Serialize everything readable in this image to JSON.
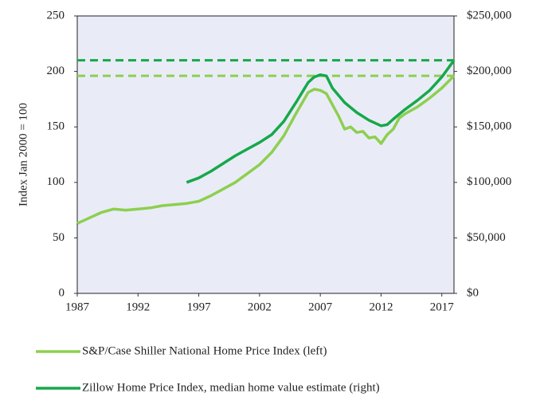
{
  "chart_data": {
    "type": "line",
    "xlim": [
      1987,
      2018
    ],
    "xticks": [
      1987,
      1992,
      1997,
      2002,
      2007,
      2012,
      2017
    ],
    "ylim": [
      0,
      250
    ],
    "yticks": [
      0,
      50,
      100,
      150,
      200,
      250
    ],
    "y2lim": [
      0,
      250000
    ],
    "y2ticks": [
      {
        "value": 0,
        "label": "$0"
      },
      {
        "value": 50000,
        "label": "$50,000"
      },
      {
        "value": 100000,
        "label": "$100,000"
      },
      {
        "value": 150000,
        "label": "$150,000"
      },
      {
        "value": 200000,
        "label": "$200,000"
      },
      {
        "value": 250000,
        "label": "$250,000"
      }
    ],
    "ylabel": "Index Jan 2000 = 100",
    "series": [
      {
        "name": "S&P/Case Shiller National Home Price Index (left)",
        "color": "#8dcf4f",
        "axis": "y",
        "x": [
          1987,
          1988,
          1989,
          1990,
          1991,
          1992,
          1993,
          1994,
          1995,
          1996,
          1997,
          1998,
          1999,
          2000,
          2001,
          2002,
          2003,
          2004,
          2005,
          2006,
          2006.5,
          2007,
          2007.5,
          2008,
          2008.5,
          2009,
          2009.5,
          2010,
          2010.5,
          2011,
          2011.5,
          2012,
          2012.5,
          2013,
          2013.5,
          2014,
          2015,
          2016,
          2017,
          2018
        ],
        "values": [
          63,
          68,
          73,
          76,
          75,
          76,
          77,
          79,
          80,
          81,
          83,
          88,
          94,
          100,
          108,
          116,
          127,
          142,
          162,
          181,
          184,
          183,
          180,
          170,
          160,
          148,
          150,
          145,
          146,
          140,
          141,
          135,
          143,
          148,
          158,
          162,
          168,
          176,
          185,
          196
        ]
      },
      {
        "name": "Zillow Home Price Index, median home value estimate (right)",
        "color": "#16a84a",
        "axis": "y2",
        "x": [
          1996,
          1997,
          1998,
          1999,
          2000,
          2001,
          2002,
          2003,
          2004,
          2005,
          2006,
          2006.5,
          2007,
          2007.5,
          2008,
          2009,
          2010,
          2011,
          2012,
          2012.5,
          2013,
          2014,
          2015,
          2016,
          2017,
          2018
        ],
        "values": [
          100000,
          104000,
          110000,
          117000,
          124000,
          130000,
          136000,
          143000,
          155000,
          172000,
          190000,
          195000,
          197000,
          196000,
          185000,
          172000,
          163000,
          156000,
          151000,
          152000,
          157000,
          166000,
          174000,
          183000,
          195000,
          210000
        ]
      }
    ],
    "reference_lines": [
      {
        "value": 196,
        "axis": "y",
        "color": "#8dcf4f"
      },
      {
        "value": 210000,
        "axis": "y2",
        "color": "#16a84a"
      }
    ]
  }
}
